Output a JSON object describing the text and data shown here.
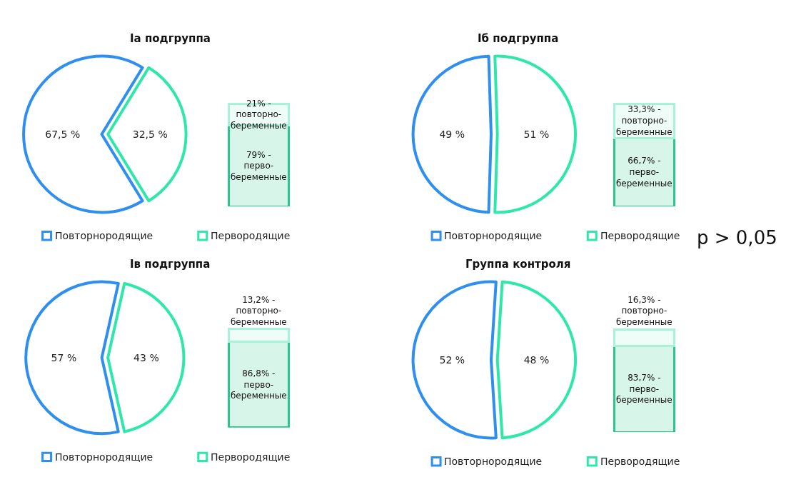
{
  "chart_data": [
    {
      "type": "pie",
      "title": "Ia подгруппа",
      "categories": [
        "Повторнородящие",
        "Первородящие"
      ],
      "values": [
        67.5,
        32.5
      ],
      "colors": [
        "#2e8ff0",
        "#2ee8aa"
      ],
      "value_labels": [
        "67,5 %",
        "32,5 %"
      ],
      "legend": "bottom"
    },
    {
      "type": "bar",
      "stacked": true,
      "categories": [
        null
      ],
      "series": [
        {
          "color": "#27c98a",
          "values": [
            79
          ],
          "value_labels": [
            "79% -\nперво-\nбеременные"
          ]
        },
        {
          "color": "#a8f2d8",
          "values": [
            21
          ],
          "value_labels": [
            "21% -\nповторно-\nбеременные"
          ]
        }
      ],
      "tick_labels": false
    },
    {
      "type": "pie",
      "title": "Iб подгруппа",
      "categories": [
        "Повторнородящие",
        "Первородящие"
      ],
      "values": [
        49,
        51
      ],
      "colors": [
        "#2e8ff0",
        "#2ee8aa"
      ],
      "value_labels": [
        "49 %",
        "51 %"
      ],
      "legend": "bottom",
      "annotations": [
        "p > 0,05"
      ]
    },
    {
      "type": "bar",
      "stacked": true,
      "categories": [
        null
      ],
      "series": [
        {
          "color": "#27c98a",
          "values": [
            66.7
          ],
          "value_labels": [
            "66,7% -\nперво-\nбеременные"
          ]
        },
        {
          "color": "#a8f2d8",
          "values": [
            33.3
          ],
          "value_labels": [
            "33,3% -\nповторно-\nбеременные"
          ]
        }
      ],
      "tick_labels": false
    },
    {
      "type": "pie",
      "title": "Iв подгруппа",
      "categories": [
        "Повторнородящие",
        "Первородящие"
      ],
      "values": [
        57,
        43
      ],
      "colors": [
        "#2e8ff0",
        "#2ee8aa"
      ],
      "value_labels": [
        "57 %",
        "43 %"
      ],
      "legend": "bottom"
    },
    {
      "type": "bar",
      "stacked": true,
      "categories": [
        null
      ],
      "series": [
        {
          "color": "#27c98a",
          "values": [
            86.8
          ],
          "value_labels": [
            "86,8% -\nперво-\nбеременные"
          ]
        },
        {
          "color": "#a8f2d8",
          "values": [
            13.2
          ],
          "value_labels": [
            "13,2% -\nповторно-\nбеременные"
          ]
        }
      ],
      "tick_labels": false
    },
    {
      "type": "pie",
      "title": "Группа контроля",
      "categories": [
        "Повторнородящие",
        "Первородящие"
      ],
      "values": [
        52,
        48
      ],
      "colors": [
        "#2e8ff0",
        "#2ee8aa"
      ],
      "value_labels": [
        "52 %",
        "48 %"
      ],
      "legend": "bottom"
    },
    {
      "type": "bar",
      "stacked": true,
      "categories": [
        null
      ],
      "series": [
        {
          "color": "#27c98a",
          "values": [
            83.7
          ],
          "value_labels": [
            "83,7% -\nперво-\nбеременные"
          ]
        },
        {
          "color": "#a8f2d8",
          "values": [
            16.3
          ],
          "value_labels": [
            "16,3% -\nповторно-\nбеременные"
          ]
        }
      ],
      "tick_labels": false
    }
  ]
}
